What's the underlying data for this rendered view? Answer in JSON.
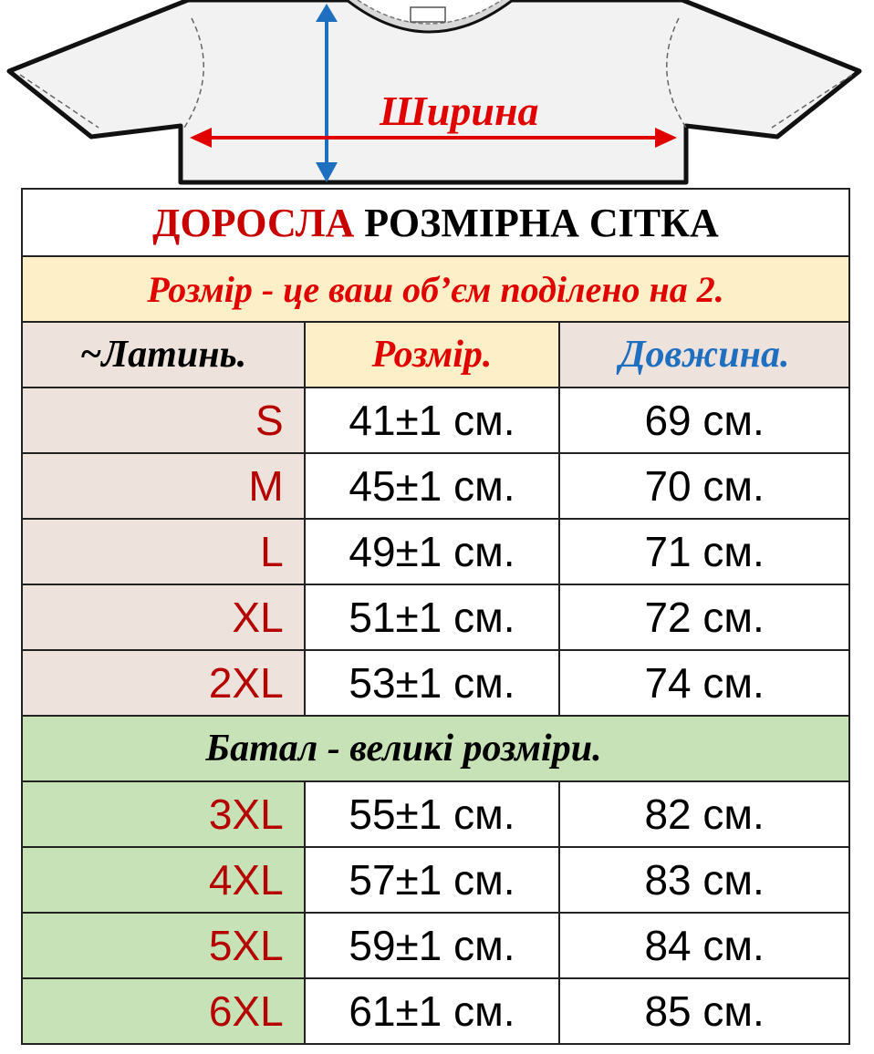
{
  "diagram": {
    "width_label": "Ширина"
  },
  "table": {
    "title_red": "ДОРОСЛА",
    "title_black": " РОЗМІРНА СІТКА",
    "note": "Розмір - це ваш об’єм поділено на 2.",
    "headers": {
      "latin": "~Латинь.",
      "size": "Розмір.",
      "length": "Довжина."
    },
    "rows": [
      {
        "latin": "S",
        "size": "41±1 см.",
        "length": "69 см."
      },
      {
        "latin": "M",
        "size": "45±1 см.",
        "length": "70 см."
      },
      {
        "latin": "L",
        "size": "49±1 см.",
        "length": "71 см."
      },
      {
        "latin": "XL",
        "size": "51±1 см.",
        "length": "72 см."
      },
      {
        "latin": "2XL",
        "size": "53±1 см.",
        "length": "74 см."
      }
    ],
    "batal_heading": "Батал - великі розміри.",
    "batal_rows": [
      {
        "latin": "3XL",
        "size": "55±1 см.",
        "length": "82 см."
      },
      {
        "latin": "4XL",
        "size": "57±1 см.",
        "length": "83 см."
      },
      {
        "latin": "5XL",
        "size": "59±1 см.",
        "length": "84 см."
      },
      {
        "latin": "6XL",
        "size": "61±1 см.",
        "length": "85 см."
      }
    ]
  },
  "colors": {
    "accent_red": "#e00000",
    "dark_red": "#b50000",
    "blue": "#1f6fc0",
    "beige": "#ede3dc",
    "cream": "#fdf0c8",
    "green": "#c8e2b8"
  },
  "icons": [
    "t-shirt-icon",
    "width-arrow-icon",
    "length-arrow-icon"
  ]
}
